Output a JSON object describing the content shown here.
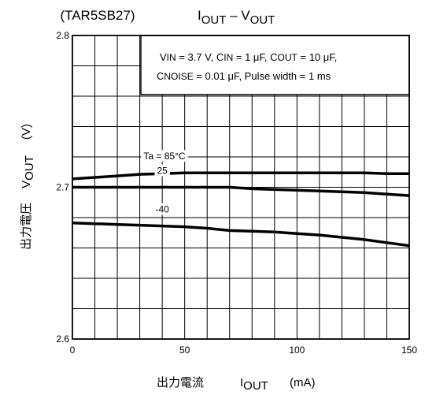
{
  "chart_data": {
    "type": "line",
    "title_device": "(TAR5SB27)",
    "title": {
      "main": "I",
      "main_sub": "OUT",
      "dash": " – V",
      "dash_sub": "OUT"
    },
    "conditions": {
      "line1": {
        "a": "V",
        "a_sub": "IN",
        "b": " = 3.7 V, C",
        "b_sub": "IN",
        "c": " = 1 μF, C",
        "c_sub": "OUT",
        "d": " = 10 μF,"
      },
      "line2": {
        "a": "C",
        "a_sub": "NOISE",
        "b": " = 0.01 μF, Pulse width = 1 ms"
      }
    },
    "xlabel": {
      "jp": "出力電流",
      "sym": "I",
      "sub": "OUT",
      "unit": "(mA)"
    },
    "ylabel": {
      "jp": "出力電圧",
      "sym": "V",
      "sub": "OUT",
      "unit": "(V)"
    },
    "xlim": [
      0,
      150
    ],
    "ylim": [
      2.6,
      2.8
    ],
    "x_ticks": [
      {
        "value": 0,
        "label": "0"
      },
      {
        "value": 50,
        "label": "50"
      },
      {
        "value": 100,
        "label": "100"
      },
      {
        "value": 150,
        "label": "150"
      }
    ],
    "y_ticks": [
      {
        "value": 2.6,
        "label": "2.6"
      },
      {
        "value": 2.7,
        "label": "2.7"
      },
      {
        "value": 2.8,
        "label": "2.8"
      }
    ],
    "grid": true,
    "x_minor_divisions": 15,
    "y_minor_divisions": 10,
    "series": [
      {
        "name": "Ta = 85°C",
        "x": [
          0,
          10,
          20,
          30,
          40,
          50,
          60,
          70,
          80,
          90,
          100,
          110,
          120,
          130,
          140,
          150
        ],
        "y": [
          2.7055,
          2.7065,
          2.7075,
          2.7085,
          2.709,
          2.7095,
          2.7095,
          2.7095,
          2.7095,
          2.7095,
          2.7095,
          2.7095,
          2.7095,
          2.7095,
          2.709,
          2.709
        ]
      },
      {
        "name": "25",
        "x": [
          0,
          10,
          20,
          30,
          40,
          50,
          60,
          70,
          80,
          90,
          100,
          110,
          120,
          130,
          140,
          150
        ],
        "y": [
          2.7,
          2.7,
          2.7,
          2.7,
          2.7,
          2.7,
          2.7,
          2.7,
          2.699,
          2.6985,
          2.698,
          2.6975,
          2.697,
          2.6965,
          2.6955,
          2.6945
        ]
      },
      {
        "name": "-40",
        "x": [
          0,
          10,
          20,
          30,
          40,
          50,
          60,
          70,
          80,
          90,
          100,
          110,
          120,
          130,
          140,
          150
        ],
        "y": [
          2.6765,
          2.676,
          2.6755,
          2.675,
          2.6745,
          2.674,
          2.673,
          2.6715,
          2.671,
          2.6705,
          2.6695,
          2.6685,
          2.667,
          2.6655,
          2.6635,
          2.6615
        ]
      }
    ]
  }
}
